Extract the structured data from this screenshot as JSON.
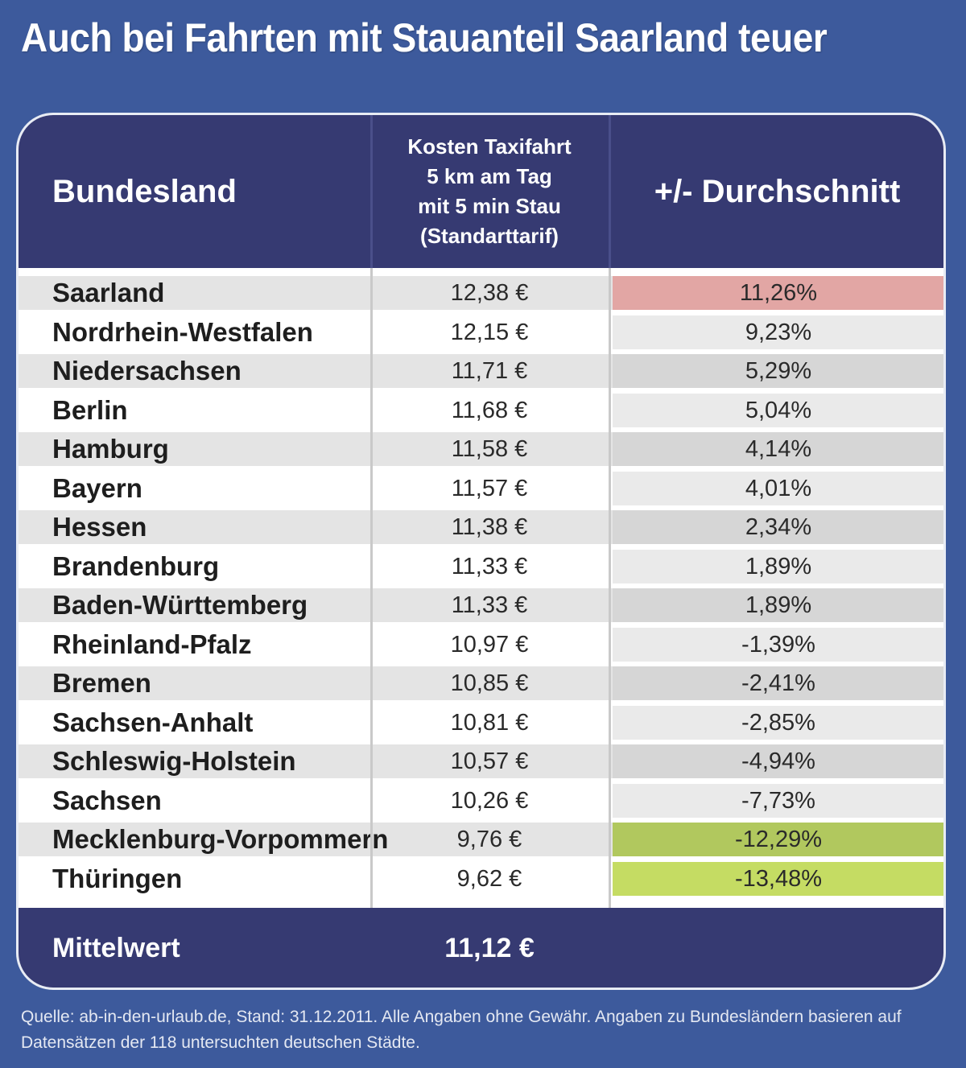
{
  "title": "Auch bei Fahrten mit Stauanteil Saarland teuer",
  "chart_data": {
    "type": "table",
    "columns": [
      "Bundesland",
      "Kosten Taxifahrt\n5 km am Tag\nmit 5 min Stau\n(Standarttarif)",
      "+/- Durchschnitt"
    ],
    "rows": [
      {
        "land": "Saarland",
        "cost": "12,38 €",
        "diff": "11,26%",
        "highlight": "#e2a6a4"
      },
      {
        "land": "Nordrhein-Westfalen",
        "cost": "12,15 €",
        "diff": "9,23%",
        "highlight": ""
      },
      {
        "land": "Niedersachsen",
        "cost": "11,71 €",
        "diff": "5,29%",
        "highlight": ""
      },
      {
        "land": "Berlin",
        "cost": "11,68 €",
        "diff": "5,04%",
        "highlight": ""
      },
      {
        "land": "Hamburg",
        "cost": "11,58 €",
        "diff": "4,14%",
        "highlight": ""
      },
      {
        "land": "Bayern",
        "cost": "11,57 €",
        "diff": "4,01%",
        "highlight": ""
      },
      {
        "land": "Hessen",
        "cost": "11,38 €",
        "diff": "2,34%",
        "highlight": ""
      },
      {
        "land": "Brandenburg",
        "cost": "11,33 €",
        "diff": "1,89%",
        "highlight": ""
      },
      {
        "land": "Baden-Württemberg",
        "cost": "11,33 €",
        "diff": "1,89%",
        "highlight": ""
      },
      {
        "land": "Rheinland-Pfalz",
        "cost": "10,97 €",
        "diff": "-1,39%",
        "highlight": ""
      },
      {
        "land": "Bremen",
        "cost": "10,85 €",
        "diff": "-2,41%",
        "highlight": ""
      },
      {
        "land": "Sachsen-Anhalt",
        "cost": "10,81 €",
        "diff": "-2,85%",
        "highlight": ""
      },
      {
        "land": "Schleswig-Holstein",
        "cost": "10,57 €",
        "diff": "-4,94%",
        "highlight": ""
      },
      {
        "land": "Sachsen",
        "cost": "10,26 €",
        "diff": "-7,73%",
        "highlight": ""
      },
      {
        "land": "Mecklenburg-Vorpommern",
        "cost": "9,76 €",
        "diff": "-12,29%",
        "highlight": "#b1c85e"
      },
      {
        "land": "Thüringen",
        "cost": "9,62 €",
        "diff": "-13,48%",
        "highlight": "#c5dc63"
      }
    ],
    "summary": {
      "label": "Mittelwert",
      "cost": "11,12 €"
    }
  },
  "source": "Quelle: ab-in-den-urlaub.de, Stand: 31.12.2011. Alle Angaben ohne Gewähr. Angaben zu Bundesländern basieren auf Datensätzen der 118 untersuchten deutschen Städte.",
  "colors": {
    "background": "#3d5a9c",
    "header": "#363a72",
    "row_even": "#e4e4e4",
    "row_odd": "#ffffff",
    "diff_even": "#d6d6d6",
    "diff_odd": "#eaeaea"
  }
}
